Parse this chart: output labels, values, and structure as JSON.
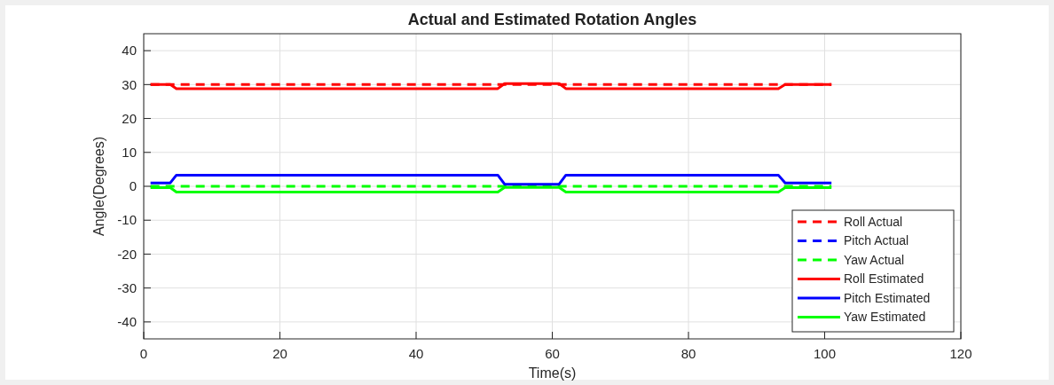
{
  "chart_data": {
    "type": "line",
    "title": "Actual and Estimated Rotation Angles",
    "xlabel": "Time(s)",
    "ylabel": "Angle(Degrees)",
    "xlim": [
      0,
      120
    ],
    "xticks": [
      0,
      20,
      40,
      60,
      80,
      100,
      120
    ],
    "ylim": [
      -45,
      45
    ],
    "yticks": [
      -40,
      -30,
      -20,
      -10,
      0,
      10,
      20,
      30,
      40
    ],
    "grid": true,
    "legend": "bottom right",
    "series": [
      {
        "name": "Roll Actual",
        "color": "#ff0000",
        "line_style": "dashed",
        "x": [
          1,
          101
        ],
        "values": [
          30,
          30
        ]
      },
      {
        "name": "Pitch Actual",
        "color": "#0000ff",
        "line_style": "dashed"
      },
      {
        "name": "Yaw Actual",
        "color": "#00ff00",
        "line_style": "dashed",
        "x": [
          1,
          101
        ],
        "values": [
          0,
          0
        ]
      },
      {
        "name": "Roll Estimated",
        "color": "#ff0000",
        "line_style": "solid",
        "x": [
          1,
          3.9,
          4.8,
          52,
          53,
          61,
          62,
          93.2,
          94.2,
          101
        ],
        "values": [
          30,
          30,
          28.8,
          28.8,
          30.3,
          30.3,
          28.8,
          28.8,
          30,
          30
        ]
      },
      {
        "name": "Pitch Estimated",
        "color": "#0000ff",
        "line_style": "solid",
        "x": [
          1,
          3.9,
          4.8,
          52,
          53,
          61,
          62,
          93.2,
          94.2,
          101
        ],
        "values": [
          1,
          1,
          3.3,
          3.3,
          0.6,
          0.6,
          3.3,
          3.3,
          1,
          1
        ]
      },
      {
        "name": "Yaw Estimated",
        "color": "#00ff00",
        "line_style": "solid",
        "x": [
          1,
          3.9,
          4.8,
          52,
          53,
          61,
          62,
          93.2,
          94.2,
          101
        ],
        "values": [
          -0.4,
          -0.4,
          -1.7,
          -1.7,
          -0.3,
          -0.3,
          -1.7,
          -1.7,
          -0.4,
          -0.4
        ]
      }
    ]
  }
}
